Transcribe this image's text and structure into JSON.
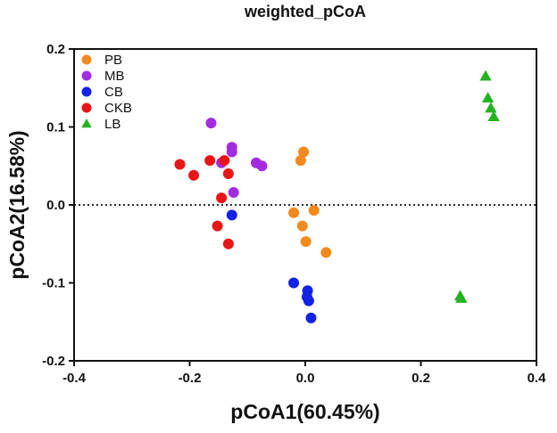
{
  "chart_data": {
    "type": "scatter",
    "title": "weighted_pCoA",
    "xlabel": "pCoA1(60.45%)",
    "ylabel": "pCoA2(16.58%)",
    "xlim": [
      -0.4,
      0.4
    ],
    "ylim": [
      -0.2,
      0.2
    ],
    "xticks": [
      -0.4,
      -0.2,
      0.0,
      0.2,
      0.4
    ],
    "xtick_labels": [
      "-0.4",
      "-0.2",
      "0.0",
      "0.2",
      "0.4"
    ],
    "yticks": [
      -0.2,
      -0.1,
      0.0,
      0.1,
      0.2
    ],
    "ytick_labels": [
      "-0.2",
      "-0.1",
      "0.0",
      "0.1",
      "0.2"
    ],
    "reference_line": {
      "y": 0,
      "style": "dotted"
    },
    "legend_position": "top-left",
    "series": [
      {
        "name": "PB",
        "color": "#f28a1d",
        "marker": "circle",
        "points": [
          [
            -0.003,
            0.068
          ],
          [
            -0.008,
            0.057
          ],
          [
            -0.02,
            -0.01
          ],
          [
            0.015,
            -0.007
          ],
          [
            -0.005,
            -0.027
          ],
          [
            0.001,
            -0.047
          ],
          [
            0.036,
            -0.061
          ]
        ]
      },
      {
        "name": "MB",
        "color": "#a32ce0",
        "marker": "circle",
        "points": [
          [
            -0.163,
            0.105
          ],
          [
            -0.127,
            0.074
          ],
          [
            -0.127,
            0.068
          ],
          [
            -0.145,
            0.054
          ],
          [
            -0.085,
            0.054
          ],
          [
            -0.075,
            0.05
          ],
          [
            -0.124,
            0.016
          ]
        ]
      },
      {
        "name": "CB",
        "color": "#1222e6",
        "marker": "circle",
        "points": [
          [
            -0.127,
            -0.013
          ],
          [
            -0.02,
            -0.1
          ],
          [
            0.004,
            -0.11
          ],
          [
            0.003,
            -0.118
          ],
          [
            0.006,
            -0.123
          ],
          [
            0.01,
            -0.145
          ]
        ]
      },
      {
        "name": "CKB",
        "color": "#e81616",
        "marker": "circle",
        "points": [
          [
            -0.217,
            0.052
          ],
          [
            -0.165,
            0.057
          ],
          [
            -0.14,
            0.057
          ],
          [
            -0.193,
            0.038
          ],
          [
            -0.133,
            0.04
          ],
          [
            -0.145,
            0.009
          ],
          [
            -0.152,
            -0.027
          ],
          [
            -0.133,
            -0.05
          ]
        ]
      },
      {
        "name": "LB",
        "color": "#25b321",
        "marker": "triangle",
        "points": [
          [
            0.312,
            0.165
          ],
          [
            0.316,
            0.137
          ],
          [
            0.321,
            0.124
          ],
          [
            0.326,
            0.113
          ],
          [
            0.268,
            -0.117
          ],
          [
            0.27,
            -0.12
          ]
        ]
      }
    ]
  }
}
